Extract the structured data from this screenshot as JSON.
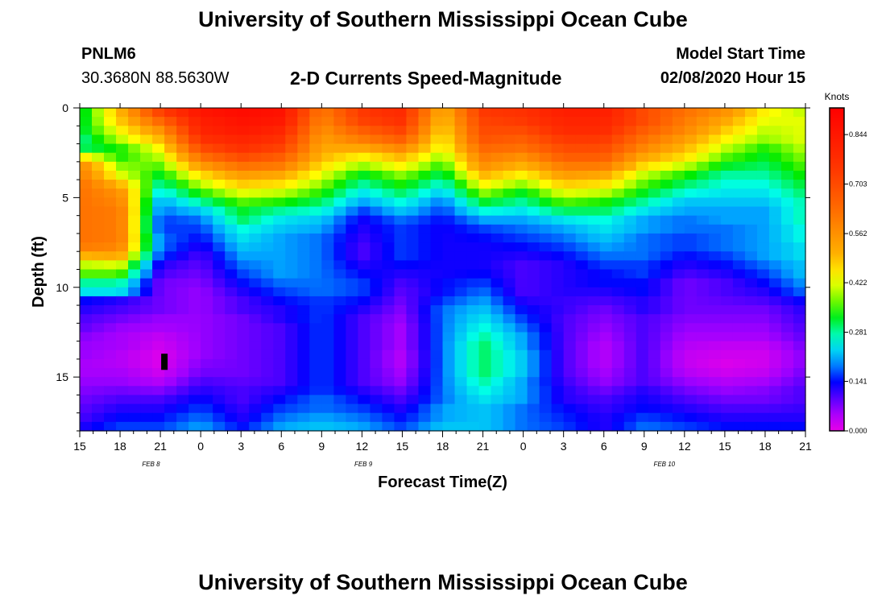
{
  "header": {
    "title": "University of Southern Mississippi Ocean Cube",
    "station": "PNLM6",
    "coords": "30.3680N 88.5630W",
    "plot_title": "2-D Currents Speed-Magnitude",
    "start_label": "Model Start Time",
    "start_value": "02/08/2020 Hour 15"
  },
  "footer": {
    "title": "University of Southern Mississippi Ocean Cube"
  },
  "chart_data": {
    "type": "heatmap",
    "title": "2-D Currents Speed-Magnitude",
    "xlabel": "Forecast Time(Z)",
    "ylabel": "Depth (ft)",
    "x_range_hours": [
      0,
      54
    ],
    "y_range_ft": [
      0,
      18
    ],
    "x_tick_labels": [
      "15",
      "18",
      "21",
      "0",
      "3",
      "6",
      "9",
      "12",
      "15",
      "18",
      "21",
      "0",
      "3",
      "6",
      "9",
      "12",
      "15",
      "18",
      "21"
    ],
    "y_ticks": [
      0,
      5,
      10,
      15
    ],
    "date_labels": [
      {
        "label": "FEB 8",
        "hour": 5.3
      },
      {
        "label": "FEB 9",
        "hour": 21.1
      },
      {
        "label": "FEB 10",
        "hour": 43.5
      }
    ],
    "colorbar": {
      "unit": "Knots",
      "min": 0.0,
      "max": 0.92,
      "tick_values": [
        0.0,
        0.141,
        0.281,
        0.422,
        0.562,
        0.703,
        0.844
      ],
      "tick_labels": [
        "0.000",
        "0.141",
        "0.281",
        "0.422",
        "0.562",
        "0.703",
        "0.844"
      ]
    },
    "depth_rows_ft": [
      0.25,
      0.75,
      1.25,
      1.75,
      2.25,
      2.75,
      3.25,
      3.75,
      4.25,
      4.75,
      5.25,
      5.75,
      6.25,
      6.75,
      7.25,
      7.75,
      8.25,
      8.75,
      9.25,
      9.75,
      10.25,
      10.75,
      11.25,
      11.75,
      12.25,
      12.75,
      13.25,
      13.75,
      14.25,
      14.75,
      15.25,
      15.75,
      16.25,
      16.75,
      17.25,
      17.75
    ],
    "time_cols_h": [
      0,
      3,
      6,
      9,
      12,
      15,
      18,
      21,
      24,
      27,
      30,
      33,
      36,
      39,
      42,
      45,
      48,
      51,
      54
    ],
    "speed_knots": [
      [
        0.3,
        0.5,
        0.72,
        0.85,
        0.88,
        0.86,
        0.6,
        0.74,
        0.78,
        0.5,
        0.74,
        0.76,
        0.82,
        0.82,
        0.7,
        0.62,
        0.56,
        0.44,
        0.4
      ],
      [
        0.3,
        0.48,
        0.64,
        0.82,
        0.86,
        0.84,
        0.58,
        0.72,
        0.76,
        0.48,
        0.72,
        0.74,
        0.8,
        0.8,
        0.7,
        0.6,
        0.52,
        0.42,
        0.42
      ],
      [
        0.3,
        0.44,
        0.56,
        0.8,
        0.84,
        0.8,
        0.56,
        0.66,
        0.72,
        0.46,
        0.7,
        0.7,
        0.78,
        0.78,
        0.66,
        0.58,
        0.48,
        0.4,
        0.42
      ],
      [
        0.28,
        0.4,
        0.5,
        0.76,
        0.8,
        0.76,
        0.54,
        0.6,
        0.66,
        0.44,
        0.68,
        0.66,
        0.74,
        0.74,
        0.62,
        0.54,
        0.44,
        0.38,
        0.42
      ],
      [
        0.3,
        0.34,
        0.44,
        0.7,
        0.76,
        0.72,
        0.52,
        0.52,
        0.58,
        0.42,
        0.64,
        0.62,
        0.7,
        0.7,
        0.58,
        0.5,
        0.4,
        0.34,
        0.4
      ],
      [
        0.46,
        0.34,
        0.4,
        0.62,
        0.7,
        0.66,
        0.5,
        0.44,
        0.5,
        0.38,
        0.6,
        0.56,
        0.66,
        0.66,
        0.52,
        0.46,
        0.36,
        0.32,
        0.38
      ],
      [
        0.58,
        0.38,
        0.36,
        0.54,
        0.62,
        0.6,
        0.46,
        0.38,
        0.44,
        0.34,
        0.56,
        0.5,
        0.6,
        0.6,
        0.46,
        0.4,
        0.32,
        0.3,
        0.36
      ],
      [
        0.6,
        0.42,
        0.32,
        0.46,
        0.54,
        0.52,
        0.42,
        0.32,
        0.38,
        0.3,
        0.5,
        0.44,
        0.54,
        0.52,
        0.4,
        0.34,
        0.28,
        0.28,
        0.34
      ],
      [
        0.62,
        0.5,
        0.28,
        0.4,
        0.48,
        0.46,
        0.38,
        0.28,
        0.34,
        0.26,
        0.44,
        0.38,
        0.48,
        0.46,
        0.36,
        0.3,
        0.26,
        0.26,
        0.32
      ],
      [
        0.62,
        0.56,
        0.24,
        0.34,
        0.42,
        0.4,
        0.34,
        0.24,
        0.3,
        0.22,
        0.38,
        0.32,
        0.42,
        0.4,
        0.32,
        0.26,
        0.24,
        0.24,
        0.3
      ],
      [
        0.62,
        0.58,
        0.2,
        0.28,
        0.36,
        0.34,
        0.3,
        0.2,
        0.26,
        0.18,
        0.32,
        0.28,
        0.36,
        0.34,
        0.28,
        0.22,
        0.22,
        0.22,
        0.28
      ],
      [
        0.62,
        0.6,
        0.18,
        0.22,
        0.32,
        0.28,
        0.26,
        0.16,
        0.22,
        0.16,
        0.26,
        0.24,
        0.3,
        0.3,
        0.24,
        0.2,
        0.2,
        0.2,
        0.28
      ],
      [
        0.62,
        0.6,
        0.16,
        0.18,
        0.3,
        0.24,
        0.22,
        0.13,
        0.18,
        0.14,
        0.2,
        0.2,
        0.24,
        0.26,
        0.2,
        0.18,
        0.2,
        0.2,
        0.28
      ],
      [
        0.62,
        0.6,
        0.16,
        0.16,
        0.26,
        0.22,
        0.2,
        0.12,
        0.16,
        0.13,
        0.16,
        0.18,
        0.2,
        0.24,
        0.2,
        0.18,
        0.18,
        0.2,
        0.26
      ],
      [
        0.62,
        0.6,
        0.18,
        0.14,
        0.24,
        0.2,
        0.18,
        0.11,
        0.16,
        0.13,
        0.14,
        0.16,
        0.18,
        0.22,
        0.18,
        0.16,
        0.18,
        0.2,
        0.26
      ],
      [
        0.6,
        0.58,
        0.18,
        0.12,
        0.22,
        0.2,
        0.18,
        0.1,
        0.16,
        0.13,
        0.13,
        0.14,
        0.16,
        0.2,
        0.18,
        0.16,
        0.18,
        0.2,
        0.24
      ],
      [
        0.5,
        0.52,
        0.16,
        0.1,
        0.2,
        0.2,
        0.18,
        0.1,
        0.16,
        0.13,
        0.13,
        0.12,
        0.14,
        0.18,
        0.18,
        0.14,
        0.16,
        0.2,
        0.24
      ],
      [
        0.4,
        0.42,
        0.12,
        0.09,
        0.18,
        0.2,
        0.18,
        0.12,
        0.14,
        0.13,
        0.13,
        0.1,
        0.12,
        0.16,
        0.16,
        0.12,
        0.14,
        0.18,
        0.22
      ],
      [
        0.36,
        0.36,
        0.1,
        0.08,
        0.16,
        0.2,
        0.18,
        0.14,
        0.12,
        0.13,
        0.14,
        0.1,
        0.12,
        0.14,
        0.16,
        0.1,
        0.12,
        0.16,
        0.22
      ],
      [
        0.28,
        0.28,
        0.08,
        0.07,
        0.14,
        0.18,
        0.18,
        0.16,
        0.1,
        0.14,
        0.16,
        0.1,
        0.12,
        0.14,
        0.14,
        0.08,
        0.1,
        0.14,
        0.2
      ],
      [
        0.24,
        0.24,
        0.08,
        0.06,
        0.12,
        0.16,
        0.18,
        0.16,
        0.09,
        0.14,
        0.18,
        0.1,
        0.12,
        0.12,
        0.14,
        0.08,
        0.1,
        0.12,
        0.18
      ],
      [
        0.14,
        0.12,
        0.08,
        0.06,
        0.1,
        0.14,
        0.16,
        0.14,
        0.08,
        0.16,
        0.2,
        0.12,
        0.11,
        0.1,
        0.12,
        0.08,
        0.09,
        0.1,
        0.14
      ],
      [
        0.12,
        0.1,
        0.08,
        0.06,
        0.1,
        0.12,
        0.16,
        0.12,
        0.07,
        0.18,
        0.22,
        0.14,
        0.11,
        0.08,
        0.12,
        0.08,
        0.08,
        0.08,
        0.12
      ],
      [
        0.1,
        0.08,
        0.06,
        0.06,
        0.08,
        0.12,
        0.16,
        0.1,
        0.06,
        0.18,
        0.24,
        0.16,
        0.1,
        0.07,
        0.1,
        0.07,
        0.07,
        0.07,
        0.11
      ],
      [
        0.09,
        0.06,
        0.05,
        0.06,
        0.08,
        0.1,
        0.16,
        0.1,
        0.05,
        0.18,
        0.26,
        0.18,
        0.1,
        0.06,
        0.1,
        0.06,
        0.06,
        0.06,
        0.1
      ],
      [
        0.07,
        0.05,
        0.03,
        0.06,
        0.08,
        0.1,
        0.16,
        0.1,
        0.05,
        0.18,
        0.28,
        0.2,
        0.1,
        0.05,
        0.1,
        0.05,
        0.05,
        0.05,
        0.09
      ],
      [
        0.06,
        0.05,
        0.02,
        0.06,
        0.08,
        0.1,
        0.16,
        0.1,
        0.05,
        0.18,
        0.3,
        0.2,
        0.1,
        0.04,
        0.1,
        0.04,
        0.03,
        0.03,
        0.08
      ],
      [
        0.06,
        0.04,
        0.01,
        0.06,
        0.08,
        0.1,
        0.16,
        0.1,
        0.04,
        0.18,
        0.3,
        0.22,
        0.1,
        0.04,
        0.1,
        0.03,
        0.02,
        0.02,
        0.07
      ],
      [
        0.05,
        0.04,
        0.01,
        0.07,
        0.08,
        0.1,
        0.16,
        0.1,
        0.04,
        0.18,
        0.3,
        0.22,
        0.1,
        0.04,
        0.1,
        0.03,
        0.01,
        0.02,
        0.07
      ],
      [
        0.05,
        0.05,
        0.02,
        0.08,
        0.08,
        0.1,
        0.16,
        0.1,
        0.05,
        0.18,
        0.3,
        0.22,
        0.1,
        0.05,
        0.1,
        0.04,
        0.02,
        0.03,
        0.08
      ],
      [
        0.06,
        0.06,
        0.04,
        0.1,
        0.09,
        0.1,
        0.16,
        0.1,
        0.06,
        0.18,
        0.28,
        0.2,
        0.11,
        0.06,
        0.1,
        0.06,
        0.04,
        0.05,
        0.09
      ],
      [
        0.07,
        0.08,
        0.07,
        0.12,
        0.1,
        0.12,
        0.16,
        0.12,
        0.08,
        0.18,
        0.26,
        0.2,
        0.12,
        0.08,
        0.12,
        0.08,
        0.06,
        0.07,
        0.1
      ],
      [
        0.08,
        0.1,
        0.1,
        0.14,
        0.1,
        0.14,
        0.18,
        0.14,
        0.1,
        0.18,
        0.24,
        0.2,
        0.12,
        0.1,
        0.13,
        0.1,
        0.08,
        0.08,
        0.1
      ],
      [
        0.09,
        0.12,
        0.12,
        0.16,
        0.11,
        0.16,
        0.18,
        0.16,
        0.12,
        0.2,
        0.22,
        0.18,
        0.14,
        0.11,
        0.14,
        0.12,
        0.1,
        0.1,
        0.11
      ],
      [
        0.1,
        0.14,
        0.14,
        0.18,
        0.12,
        0.18,
        0.2,
        0.18,
        0.14,
        0.2,
        0.22,
        0.18,
        0.15,
        0.12,
        0.16,
        0.14,
        0.12,
        0.12,
        0.12
      ],
      [
        0.12,
        0.16,
        0.16,
        0.2,
        0.14,
        0.2,
        0.22,
        0.2,
        0.16,
        0.22,
        0.22,
        0.18,
        0.16,
        0.12,
        0.18,
        0.16,
        0.14,
        0.14,
        0.14
      ]
    ],
    "marker": {
      "hour": 6.3,
      "depth_range_ft": [
        13.7,
        14.6
      ],
      "color": "#000000"
    }
  }
}
